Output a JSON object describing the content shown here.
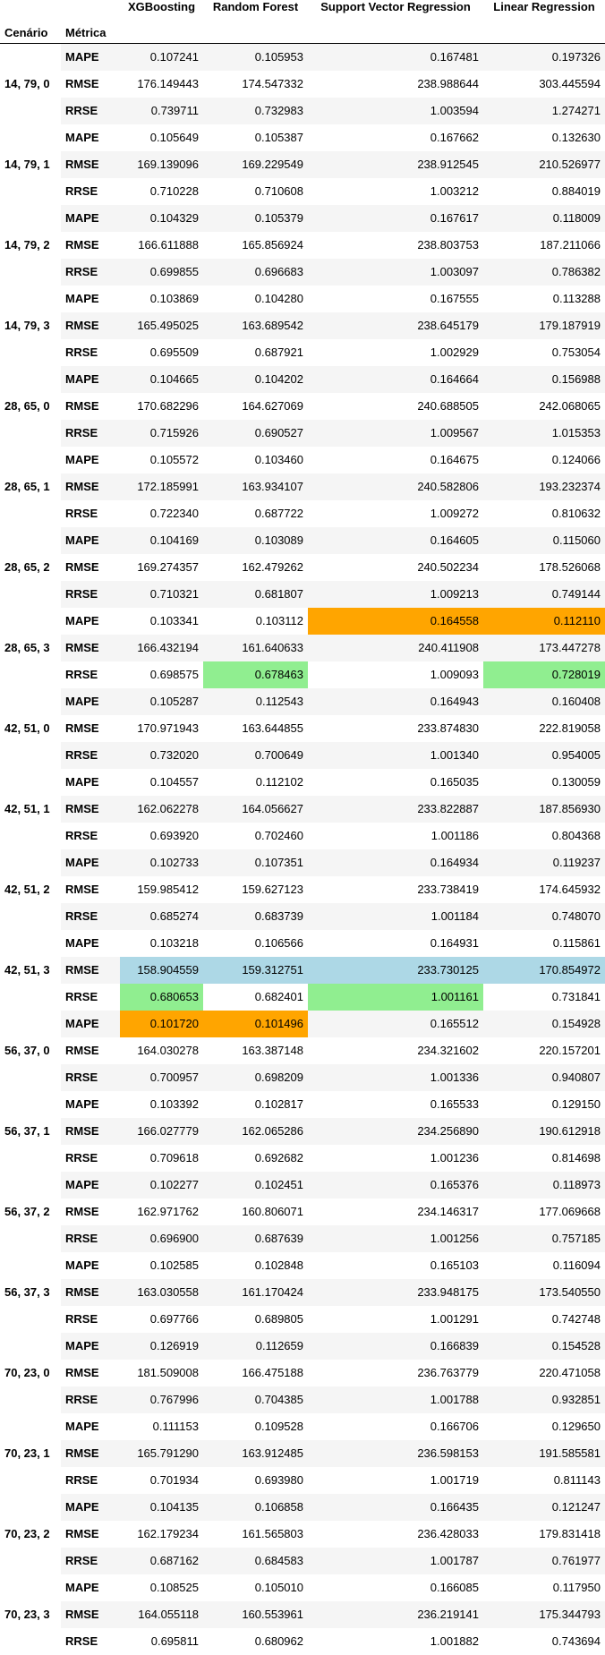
{
  "header": {
    "columns": [
      "XGBoosting",
      "Random Forest",
      "Support Vector Regression",
      "Linear Regression"
    ],
    "index_names": [
      "Cenário",
      "Métrica"
    ]
  },
  "colors": {
    "min_rrse": "#90ee90",
    "min_mape": "#ffa500",
    "min_rmse_row": "#add8e6",
    "stripe": "#f5f5f5"
  },
  "scenarios": [
    {
      "label": "14, 79, 0",
      "rows": [
        {
          "metric": "MAPE",
          "values": [
            "0.107241",
            "0.105953",
            "0.167481",
            "0.197326"
          ],
          "highlights": [
            null,
            null,
            null,
            null
          ]
        },
        {
          "metric": "RMSE",
          "values": [
            "176.149443",
            "174.547332",
            "238.988644",
            "303.445594"
          ],
          "highlights": [
            null,
            null,
            null,
            null
          ]
        },
        {
          "metric": "RRSE",
          "values": [
            "0.739711",
            "0.732983",
            "1.003594",
            "1.274271"
          ],
          "highlights": [
            null,
            null,
            null,
            null
          ]
        }
      ]
    },
    {
      "label": "14, 79, 1",
      "rows": [
        {
          "metric": "MAPE",
          "values": [
            "0.105649",
            "0.105387",
            "0.167662",
            "0.132630"
          ],
          "highlights": [
            null,
            null,
            null,
            null
          ]
        },
        {
          "metric": "RMSE",
          "values": [
            "169.139096",
            "169.229549",
            "238.912545",
            "210.526977"
          ],
          "highlights": [
            null,
            null,
            null,
            null
          ]
        },
        {
          "metric": "RRSE",
          "values": [
            "0.710228",
            "0.710608",
            "1.003212",
            "0.884019"
          ],
          "highlights": [
            null,
            null,
            null,
            null
          ]
        }
      ]
    },
    {
      "label": "14, 79, 2",
      "rows": [
        {
          "metric": "MAPE",
          "values": [
            "0.104329",
            "0.105379",
            "0.167617",
            "0.118009"
          ],
          "highlights": [
            null,
            null,
            null,
            null
          ]
        },
        {
          "metric": "RMSE",
          "values": [
            "166.611888",
            "165.856924",
            "238.803753",
            "187.211066"
          ],
          "highlights": [
            null,
            null,
            null,
            null
          ]
        },
        {
          "metric": "RRSE",
          "values": [
            "0.699855",
            "0.696683",
            "1.003097",
            "0.786382"
          ],
          "highlights": [
            null,
            null,
            null,
            null
          ]
        }
      ]
    },
    {
      "label": "14, 79, 3",
      "rows": [
        {
          "metric": "MAPE",
          "values": [
            "0.103869",
            "0.104280",
            "0.167555",
            "0.113288"
          ],
          "highlights": [
            null,
            null,
            null,
            null
          ]
        },
        {
          "metric": "RMSE",
          "values": [
            "165.495025",
            "163.689542",
            "238.645179",
            "179.187919"
          ],
          "highlights": [
            null,
            null,
            null,
            null
          ]
        },
        {
          "metric": "RRSE",
          "values": [
            "0.695509",
            "0.687921",
            "1.002929",
            "0.753054"
          ],
          "highlights": [
            null,
            null,
            null,
            null
          ]
        }
      ]
    },
    {
      "label": "28, 65, 0",
      "rows": [
        {
          "metric": "MAPE",
          "values": [
            "0.104665",
            "0.104202",
            "0.164664",
            "0.156988"
          ],
          "highlights": [
            null,
            null,
            null,
            null
          ]
        },
        {
          "metric": "RMSE",
          "values": [
            "170.682296",
            "164.627069",
            "240.688505",
            "242.068065"
          ],
          "highlights": [
            null,
            null,
            null,
            null
          ]
        },
        {
          "metric": "RRSE",
          "values": [
            "0.715926",
            "0.690527",
            "1.009567",
            "1.015353"
          ],
          "highlights": [
            null,
            null,
            null,
            null
          ]
        }
      ]
    },
    {
      "label": "28, 65, 1",
      "rows": [
        {
          "metric": "MAPE",
          "values": [
            "0.105572",
            "0.103460",
            "0.164675",
            "0.124066"
          ],
          "highlights": [
            null,
            null,
            null,
            null
          ]
        },
        {
          "metric": "RMSE",
          "values": [
            "172.185991",
            "163.934107",
            "240.582806",
            "193.232374"
          ],
          "highlights": [
            null,
            null,
            null,
            null
          ]
        },
        {
          "metric": "RRSE",
          "values": [
            "0.722340",
            "0.687722",
            "1.009272",
            "0.810632"
          ],
          "highlights": [
            null,
            null,
            null,
            null
          ]
        }
      ]
    },
    {
      "label": "28, 65, 2",
      "rows": [
        {
          "metric": "MAPE",
          "values": [
            "0.104169",
            "0.103089",
            "0.164605",
            "0.115060"
          ],
          "highlights": [
            null,
            null,
            null,
            null
          ]
        },
        {
          "metric": "RMSE",
          "values": [
            "169.274357",
            "162.479262",
            "240.502234",
            "178.526068"
          ],
          "highlights": [
            null,
            null,
            null,
            null
          ]
        },
        {
          "metric": "RRSE",
          "values": [
            "0.710321",
            "0.681807",
            "1.009213",
            "0.749144"
          ],
          "highlights": [
            null,
            null,
            null,
            null
          ]
        }
      ]
    },
    {
      "label": "28, 65, 3",
      "rows": [
        {
          "metric": "MAPE",
          "values": [
            "0.103341",
            "0.103112",
            "0.164558",
            "0.112110"
          ],
          "highlights": [
            null,
            null,
            "best",
            "best"
          ]
        },
        {
          "metric": "RMSE",
          "values": [
            "166.432194",
            "161.640633",
            "240.411908",
            "173.447278"
          ],
          "highlights": [
            null,
            null,
            null,
            null
          ]
        },
        {
          "metric": "RRSE",
          "values": [
            "0.698575",
            "0.678463",
            "1.009093",
            "0.728019"
          ],
          "highlights": [
            null,
            "min",
            null,
            "min"
          ]
        }
      ]
    },
    {
      "label": "42, 51, 0",
      "rows": [
        {
          "metric": "MAPE",
          "values": [
            "0.105287",
            "0.112543",
            "0.164943",
            "0.160408"
          ],
          "highlights": [
            null,
            null,
            null,
            null
          ]
        },
        {
          "metric": "RMSE",
          "values": [
            "170.971943",
            "163.644855",
            "233.874830",
            "222.819058"
          ],
          "highlights": [
            null,
            null,
            null,
            null
          ]
        },
        {
          "metric": "RRSE",
          "values": [
            "0.732020",
            "0.700649",
            "1.001340",
            "0.954005"
          ],
          "highlights": [
            null,
            null,
            null,
            null
          ]
        }
      ]
    },
    {
      "label": "42, 51, 1",
      "rows": [
        {
          "metric": "MAPE",
          "values": [
            "0.104557",
            "0.112102",
            "0.165035",
            "0.130059"
          ],
          "highlights": [
            null,
            null,
            null,
            null
          ]
        },
        {
          "metric": "RMSE",
          "values": [
            "162.062278",
            "164.056627",
            "233.822887",
            "187.856930"
          ],
          "highlights": [
            null,
            null,
            null,
            null
          ]
        },
        {
          "metric": "RRSE",
          "values": [
            "0.693920",
            "0.702460",
            "1.001186",
            "0.804368"
          ],
          "highlights": [
            null,
            null,
            null,
            null
          ]
        }
      ]
    },
    {
      "label": "42, 51, 2",
      "rows": [
        {
          "metric": "MAPE",
          "values": [
            "0.102733",
            "0.107351",
            "0.164934",
            "0.119237"
          ],
          "highlights": [
            null,
            null,
            null,
            null
          ]
        },
        {
          "metric": "RMSE",
          "values": [
            "159.985412",
            "159.627123",
            "233.738419",
            "174.645932"
          ],
          "highlights": [
            null,
            null,
            null,
            null
          ]
        },
        {
          "metric": "RRSE",
          "values": [
            "0.685274",
            "0.683739",
            "1.001184",
            "0.748070"
          ],
          "highlights": [
            null,
            null,
            null,
            null
          ]
        }
      ]
    },
    {
      "label": "42, 51, 3",
      "rows": [
        {
          "metric": "MAPE",
          "values": [
            "0.103218",
            "0.106566",
            "0.164931",
            "0.115861"
          ],
          "highlights": [
            null,
            null,
            null,
            null
          ]
        },
        {
          "metric": "RMSE",
          "values": [
            "158.904559",
            "159.312751",
            "233.730125",
            "170.854972"
          ],
          "highlights": [
            "rowhl",
            "rowhl",
            "rowhl",
            "rowhl"
          ]
        },
        {
          "metric": "RRSE",
          "values": [
            "0.680653",
            "0.682401",
            "1.001161",
            "0.731841"
          ],
          "highlights": [
            "min",
            null,
            "min",
            null
          ]
        }
      ]
    },
    {
      "label": "56, 37, 0",
      "rows": [
        {
          "metric": "MAPE",
          "values": [
            "0.101720",
            "0.101496",
            "0.165512",
            "0.154928"
          ],
          "highlights": [
            "best",
            "best",
            null,
            null
          ]
        },
        {
          "metric": "RMSE",
          "values": [
            "164.030278",
            "163.387148",
            "234.321602",
            "220.157201"
          ],
          "highlights": [
            null,
            null,
            null,
            null
          ]
        },
        {
          "metric": "RRSE",
          "values": [
            "0.700957",
            "0.698209",
            "1.001336",
            "0.940807"
          ],
          "highlights": [
            null,
            null,
            null,
            null
          ]
        }
      ]
    },
    {
      "label": "56, 37, 1",
      "rows": [
        {
          "metric": "MAPE",
          "values": [
            "0.103392",
            "0.102817",
            "0.165533",
            "0.129150"
          ],
          "highlights": [
            null,
            null,
            null,
            null
          ]
        },
        {
          "metric": "RMSE",
          "values": [
            "166.027779",
            "162.065286",
            "234.256890",
            "190.612918"
          ],
          "highlights": [
            null,
            null,
            null,
            null
          ]
        },
        {
          "metric": "RRSE",
          "values": [
            "0.709618",
            "0.692682",
            "1.001236",
            "0.814698"
          ],
          "highlights": [
            null,
            null,
            null,
            null
          ]
        }
      ]
    },
    {
      "label": "56, 37, 2",
      "rows": [
        {
          "metric": "MAPE",
          "values": [
            "0.102277",
            "0.102451",
            "0.165376",
            "0.118973"
          ],
          "highlights": [
            null,
            null,
            null,
            null
          ]
        },
        {
          "metric": "RMSE",
          "values": [
            "162.971762",
            "160.806071",
            "234.146317",
            "177.069668"
          ],
          "highlights": [
            null,
            null,
            null,
            null
          ]
        },
        {
          "metric": "RRSE",
          "values": [
            "0.696900",
            "0.687639",
            "1.001256",
            "0.757185"
          ],
          "highlights": [
            null,
            null,
            null,
            null
          ]
        }
      ]
    },
    {
      "label": "56, 37, 3",
      "rows": [
        {
          "metric": "MAPE",
          "values": [
            "0.102585",
            "0.102848",
            "0.165103",
            "0.116094"
          ],
          "highlights": [
            null,
            null,
            null,
            null
          ]
        },
        {
          "metric": "RMSE",
          "values": [
            "163.030558",
            "161.170424",
            "233.948175",
            "173.540550"
          ],
          "highlights": [
            null,
            null,
            null,
            null
          ]
        },
        {
          "metric": "RRSE",
          "values": [
            "0.697766",
            "0.689805",
            "1.001291",
            "0.742748"
          ],
          "highlights": [
            null,
            null,
            null,
            null
          ]
        }
      ]
    },
    {
      "label": "70, 23, 0",
      "rows": [
        {
          "metric": "MAPE",
          "values": [
            "0.126919",
            "0.112659",
            "0.166839",
            "0.154528"
          ],
          "highlights": [
            null,
            null,
            null,
            null
          ]
        },
        {
          "metric": "RMSE",
          "values": [
            "181.509008",
            "166.475188",
            "236.763779",
            "220.471058"
          ],
          "highlights": [
            null,
            null,
            null,
            null
          ]
        },
        {
          "metric": "RRSE",
          "values": [
            "0.767996",
            "0.704385",
            "1.001788",
            "0.932851"
          ],
          "highlights": [
            null,
            null,
            null,
            null
          ]
        }
      ]
    },
    {
      "label": "70, 23, 1",
      "rows": [
        {
          "metric": "MAPE",
          "values": [
            "0.111153",
            "0.109528",
            "0.166706",
            "0.129650"
          ],
          "highlights": [
            null,
            null,
            null,
            null
          ]
        },
        {
          "metric": "RMSE",
          "values": [
            "165.791290",
            "163.912485",
            "236.598153",
            "191.585581"
          ],
          "highlights": [
            null,
            null,
            null,
            null
          ]
        },
        {
          "metric": "RRSE",
          "values": [
            "0.701934",
            "0.693980",
            "1.001719",
            "0.811143"
          ],
          "highlights": [
            null,
            null,
            null,
            null
          ]
        }
      ]
    },
    {
      "label": "70, 23, 2",
      "rows": [
        {
          "metric": "MAPE",
          "values": [
            "0.104135",
            "0.106858",
            "0.166435",
            "0.121247"
          ],
          "highlights": [
            null,
            null,
            null,
            null
          ]
        },
        {
          "metric": "RMSE",
          "values": [
            "162.179234",
            "161.565803",
            "236.428033",
            "179.831418"
          ],
          "highlights": [
            null,
            null,
            null,
            null
          ]
        },
        {
          "metric": "RRSE",
          "values": [
            "0.687162",
            "0.684583",
            "1.001787",
            "0.761977"
          ],
          "highlights": [
            null,
            null,
            null,
            null
          ]
        }
      ]
    },
    {
      "label": "70, 23, 3",
      "rows": [
        {
          "metric": "MAPE",
          "values": [
            "0.108525",
            "0.105010",
            "0.166085",
            "0.117950"
          ],
          "highlights": [
            null,
            null,
            null,
            null
          ]
        },
        {
          "metric": "RMSE",
          "values": [
            "164.055118",
            "160.553961",
            "236.219141",
            "175.344793"
          ],
          "highlights": [
            null,
            null,
            null,
            null
          ]
        },
        {
          "metric": "RRSE",
          "values": [
            "0.695811",
            "0.680962",
            "1.001882",
            "0.743694"
          ],
          "highlights": [
            null,
            null,
            null,
            null
          ]
        }
      ]
    }
  ]
}
